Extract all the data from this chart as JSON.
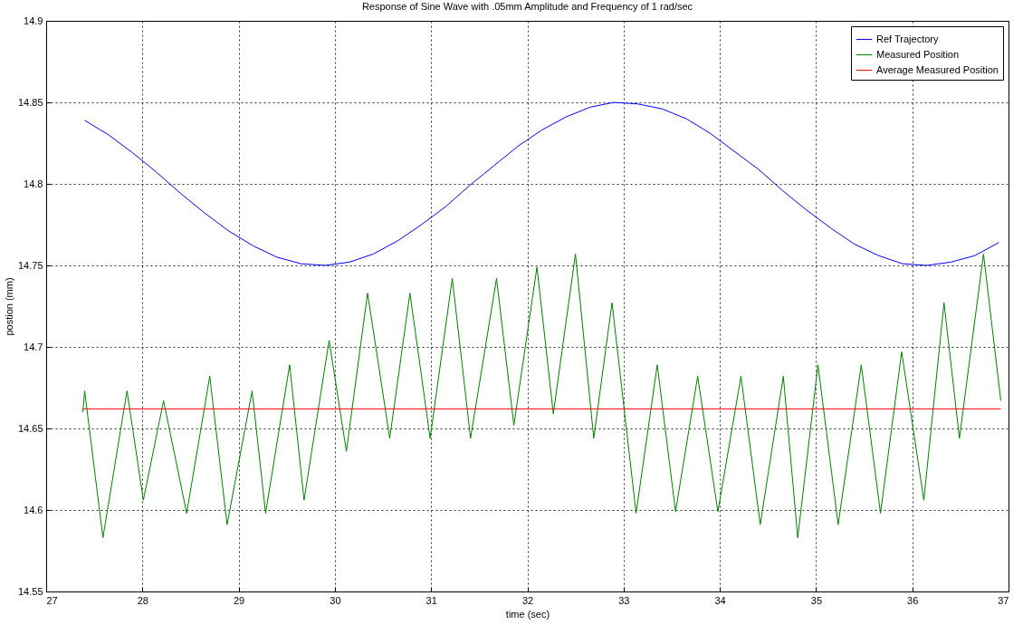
{
  "chart_data": {
    "type": "line",
    "title": "Response of Sine Wave with .05mm Amplitude and Frequency of 1 rad/sec",
    "xlabel": "time (sec)",
    "ylabel": "postion (mm)",
    "xlim": [
      27,
      37
    ],
    "xticks": [
      27,
      28,
      29,
      30,
      31,
      32,
      33,
      34,
      35,
      36,
      37
    ],
    "ylim": [
      14.55,
      14.9
    ],
    "yticks": [
      14.55,
      14.6,
      14.65,
      14.7,
      14.75,
      14.8,
      14.85,
      14.9
    ],
    "grid": true,
    "legend": "top right",
    "line_style": "solid",
    "series": [
      {
        "name": "Ref Trajectory",
        "color": "#0000ff",
        "x": [
          27.4,
          27.65,
          27.9,
          28.15,
          28.4,
          28.65,
          28.9,
          29.15,
          29.4,
          29.65,
          29.9,
          30.15,
          30.4,
          30.65,
          30.9,
          31.15,
          31.4,
          31.65,
          31.9,
          32.15,
          32.4,
          32.65,
          32.9,
          33.15,
          33.4,
          33.65,
          33.9,
          34.15,
          34.4,
          34.65,
          34.9,
          35.15,
          35.4,
          35.65,
          35.9,
          36.15,
          36.4,
          36.65,
          36.9
        ],
        "values": [
          14.839,
          14.83,
          14.819,
          14.807,
          14.794,
          14.782,
          14.771,
          14.762,
          14.755,
          14.751,
          14.75,
          14.752,
          14.757,
          14.765,
          14.775,
          14.786,
          14.799,
          14.811,
          14.823,
          14.833,
          14.841,
          14.847,
          14.85,
          14.849,
          14.846,
          14.84,
          14.831,
          14.82,
          14.809,
          14.796,
          14.784,
          14.773,
          14.763,
          14.756,
          14.751,
          14.75,
          14.752,
          14.756,
          14.764
        ]
      },
      {
        "name": "Measured Position",
        "color": "#008000",
        "x": [
          27.38,
          27.4,
          27.59,
          27.84,
          28.01,
          28.22,
          28.46,
          28.7,
          28.88,
          29.14,
          29.28,
          29.53,
          29.68,
          29.94,
          30.12,
          30.34,
          30.57,
          30.78,
          30.99,
          31.22,
          31.41,
          31.68,
          31.86,
          32.1,
          32.27,
          32.5,
          32.69,
          32.88,
          33.13,
          33.35,
          33.54,
          33.77,
          33.98,
          34.22,
          34.42,
          34.66,
          34.81,
          35.02,
          35.23,
          35.47,
          35.67,
          35.89,
          36.12,
          36.33,
          36.49,
          36.74,
          36.92
        ],
        "values": [
          14.66,
          14.673,
          14.583,
          14.673,
          14.606,
          14.667,
          14.598,
          14.682,
          14.591,
          14.673,
          14.598,
          14.689,
          14.606,
          14.704,
          14.636,
          14.733,
          14.644,
          14.733,
          14.644,
          14.742,
          14.644,
          14.742,
          14.652,
          14.749,
          14.659,
          14.757,
          14.644,
          14.727,
          14.598,
          14.689,
          14.599,
          14.682,
          14.599,
          14.682,
          14.591,
          14.682,
          14.583,
          14.689,
          14.591,
          14.689,
          14.598,
          14.697,
          14.606,
          14.727,
          14.644,
          14.757,
          14.667
        ]
      },
      {
        "name": "Average Measured Position",
        "color": "#ff0000",
        "x": [
          27.38,
          36.92
        ],
        "values": [
          14.662,
          14.662
        ]
      }
    ]
  }
}
